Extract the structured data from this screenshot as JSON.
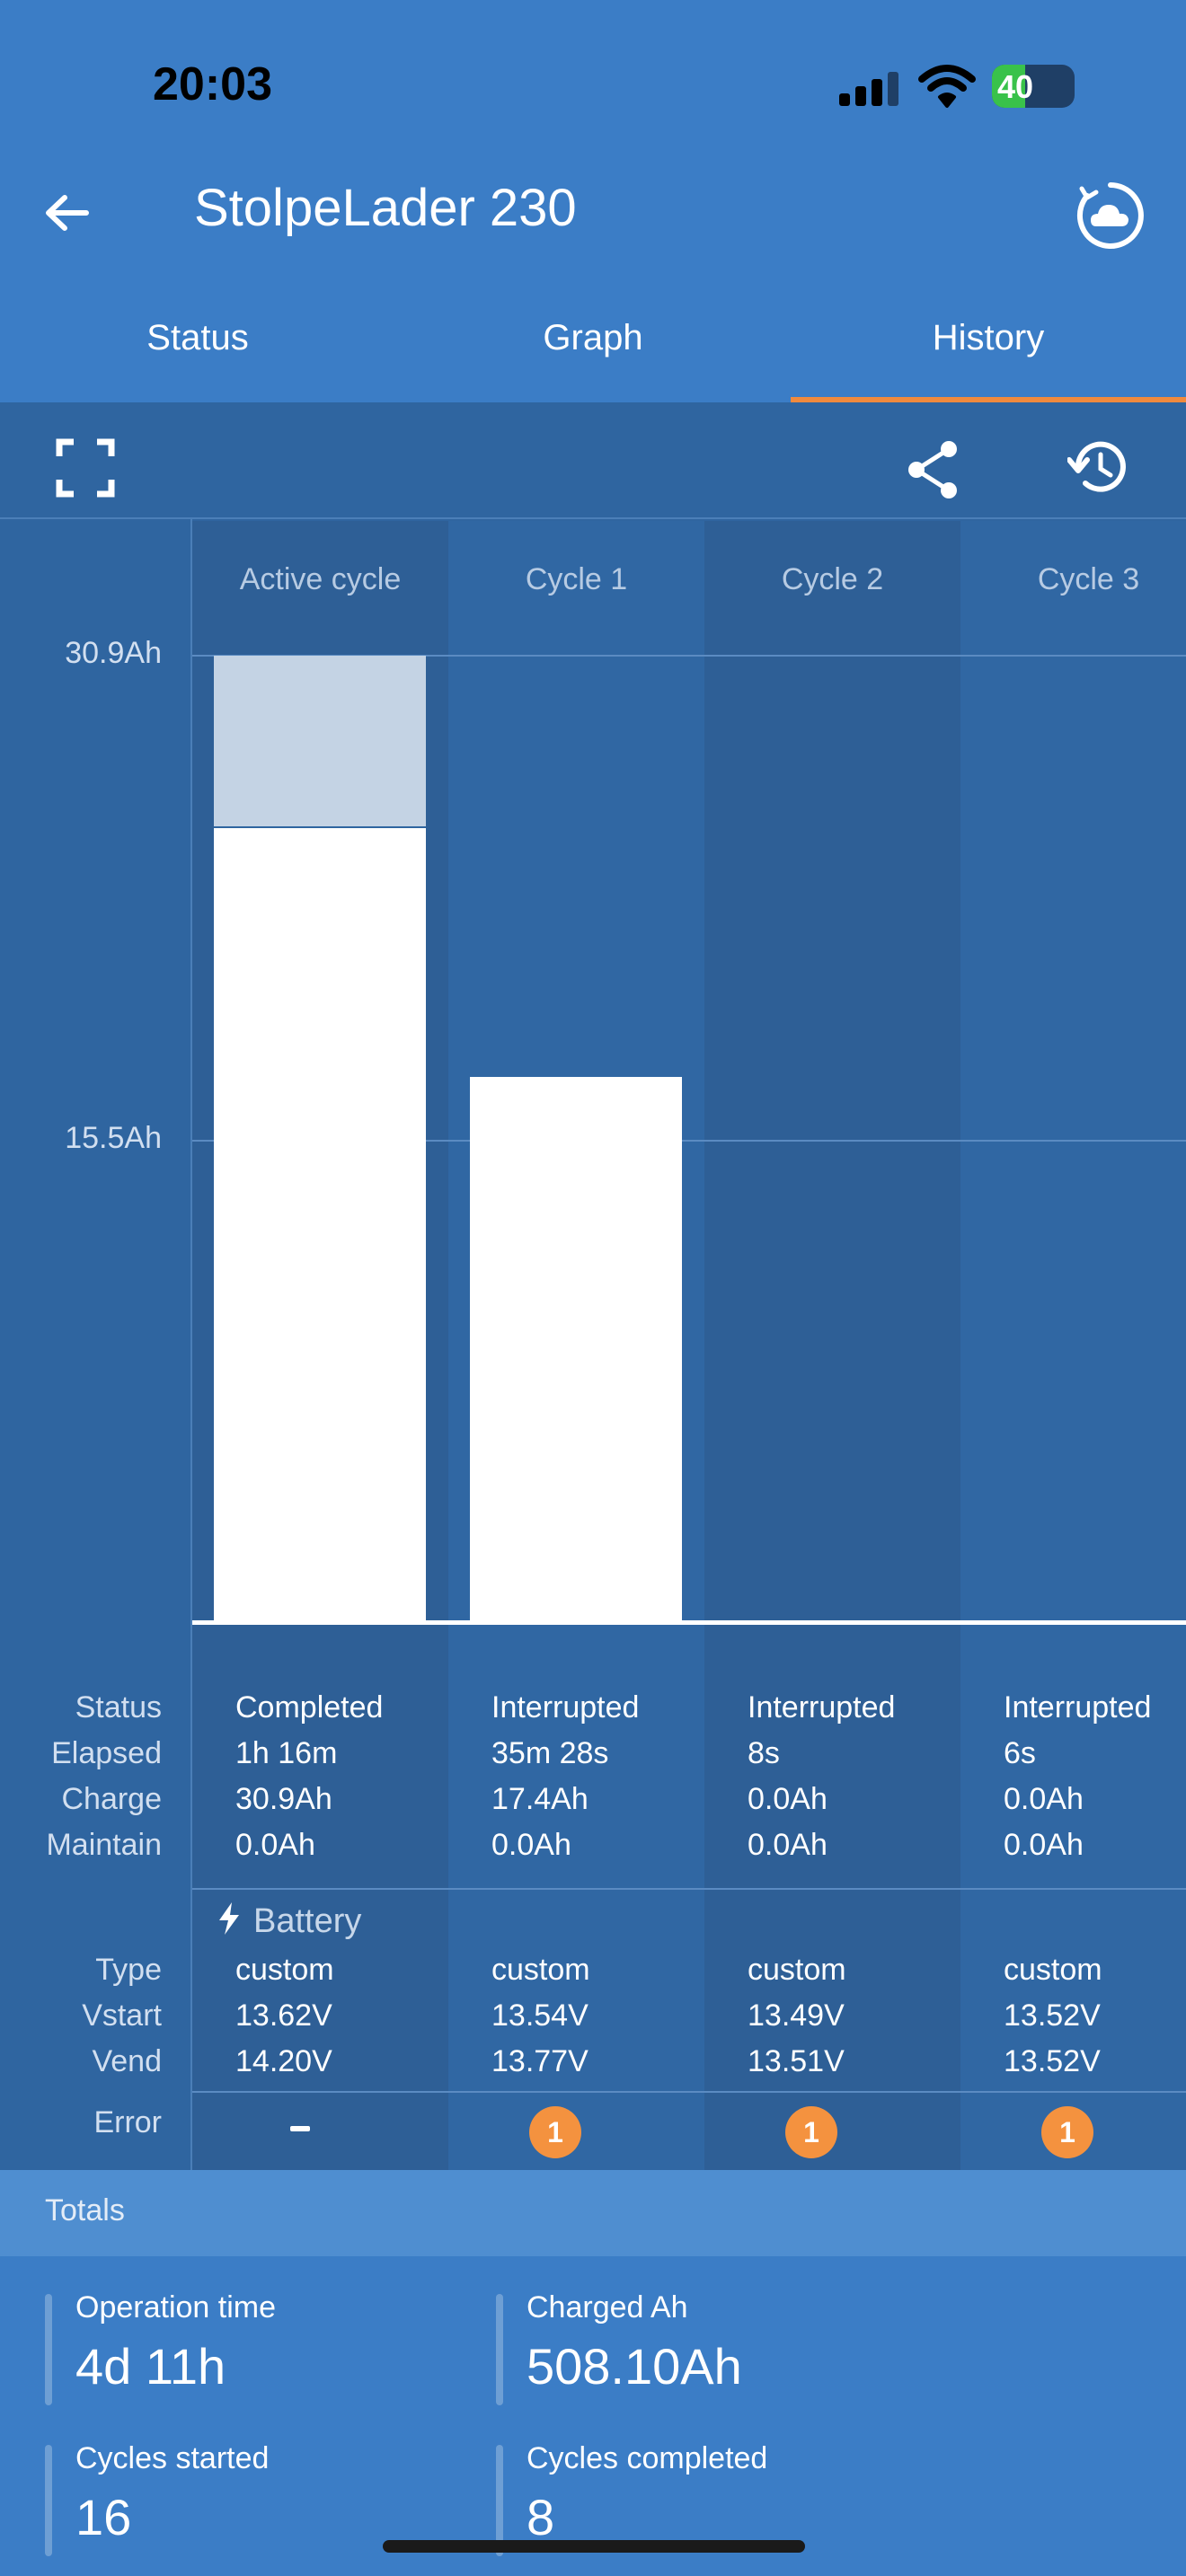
{
  "status_bar": {
    "time": "20:03",
    "battery": "40"
  },
  "app": {
    "title": "StolpeLader 230"
  },
  "tabs": [
    {
      "label": "Status",
      "active": false
    },
    {
      "label": "Graph",
      "active": false
    },
    {
      "label": "History",
      "active": true
    }
  ],
  "chart_data": {
    "type": "bar",
    "categories": [
      "Active cycle",
      "Cycle 1",
      "Cycle 2",
      "Cycle 3"
    ],
    "ytick_labels": [
      "30.9Ah",
      "15.5Ah"
    ],
    "unit": "Ah",
    "ylim": [
      0,
      30.9
    ],
    "series": [
      {
        "values": [
          25.4,
          17.4,
          0.0,
          0.0
        ]
      },
      {
        "values": [
          5.5,
          0.0,
          0.0,
          0.0
        ]
      }
    ]
  },
  "cycle_table": {
    "row_labels": {
      "status": "Status",
      "elapsed": "Elapsed",
      "charge": "Charge",
      "maintain": "Maintain",
      "battery_section": "Battery",
      "type": "Type",
      "vstart": "Vstart",
      "vend": "Vend",
      "error": "Error"
    },
    "columns": [
      {
        "status": "Completed",
        "elapsed": "1h 16m",
        "charge": "30.9Ah",
        "maintain": "0.0Ah",
        "type": "custom",
        "vstart": "13.62V",
        "vend": "14.20V",
        "error": "-"
      },
      {
        "status": "Interrupted",
        "elapsed": "35m 28s",
        "charge": "17.4Ah",
        "maintain": "0.0Ah",
        "type": "custom",
        "vstart": "13.54V",
        "vend": "13.77V",
        "error": "1"
      },
      {
        "status": "Interrupted",
        "elapsed": "8s",
        "charge": "0.0Ah",
        "maintain": "0.0Ah",
        "type": "custom",
        "vstart": "13.49V",
        "vend": "13.51V",
        "error": "1"
      },
      {
        "status": "Interrupted",
        "elapsed": "6s",
        "charge": "0.0Ah",
        "maintain": "0.0Ah",
        "type": "custom",
        "vstart": "13.52V",
        "vend": "13.52V",
        "error": "1"
      }
    ]
  },
  "totals": {
    "heading": "Totals",
    "items": [
      {
        "label": "Operation time",
        "value": "4d 11h"
      },
      {
        "label": "Charged Ah",
        "value": "508.10Ah"
      },
      {
        "label": "Cycles started",
        "value": "16"
      },
      {
        "label": "Cycles completed",
        "value": "8"
      }
    ]
  },
  "colors": {
    "accent": "#f08a3e",
    "background": "#3b7dc6",
    "panel": "#2f65a0",
    "error_badge": "#f4923f"
  },
  "icons": [
    "back-arrow-icon",
    "cloud-sync-icon",
    "fullscreen-icon",
    "share-icon",
    "history-icon",
    "bolt-icon"
  ]
}
